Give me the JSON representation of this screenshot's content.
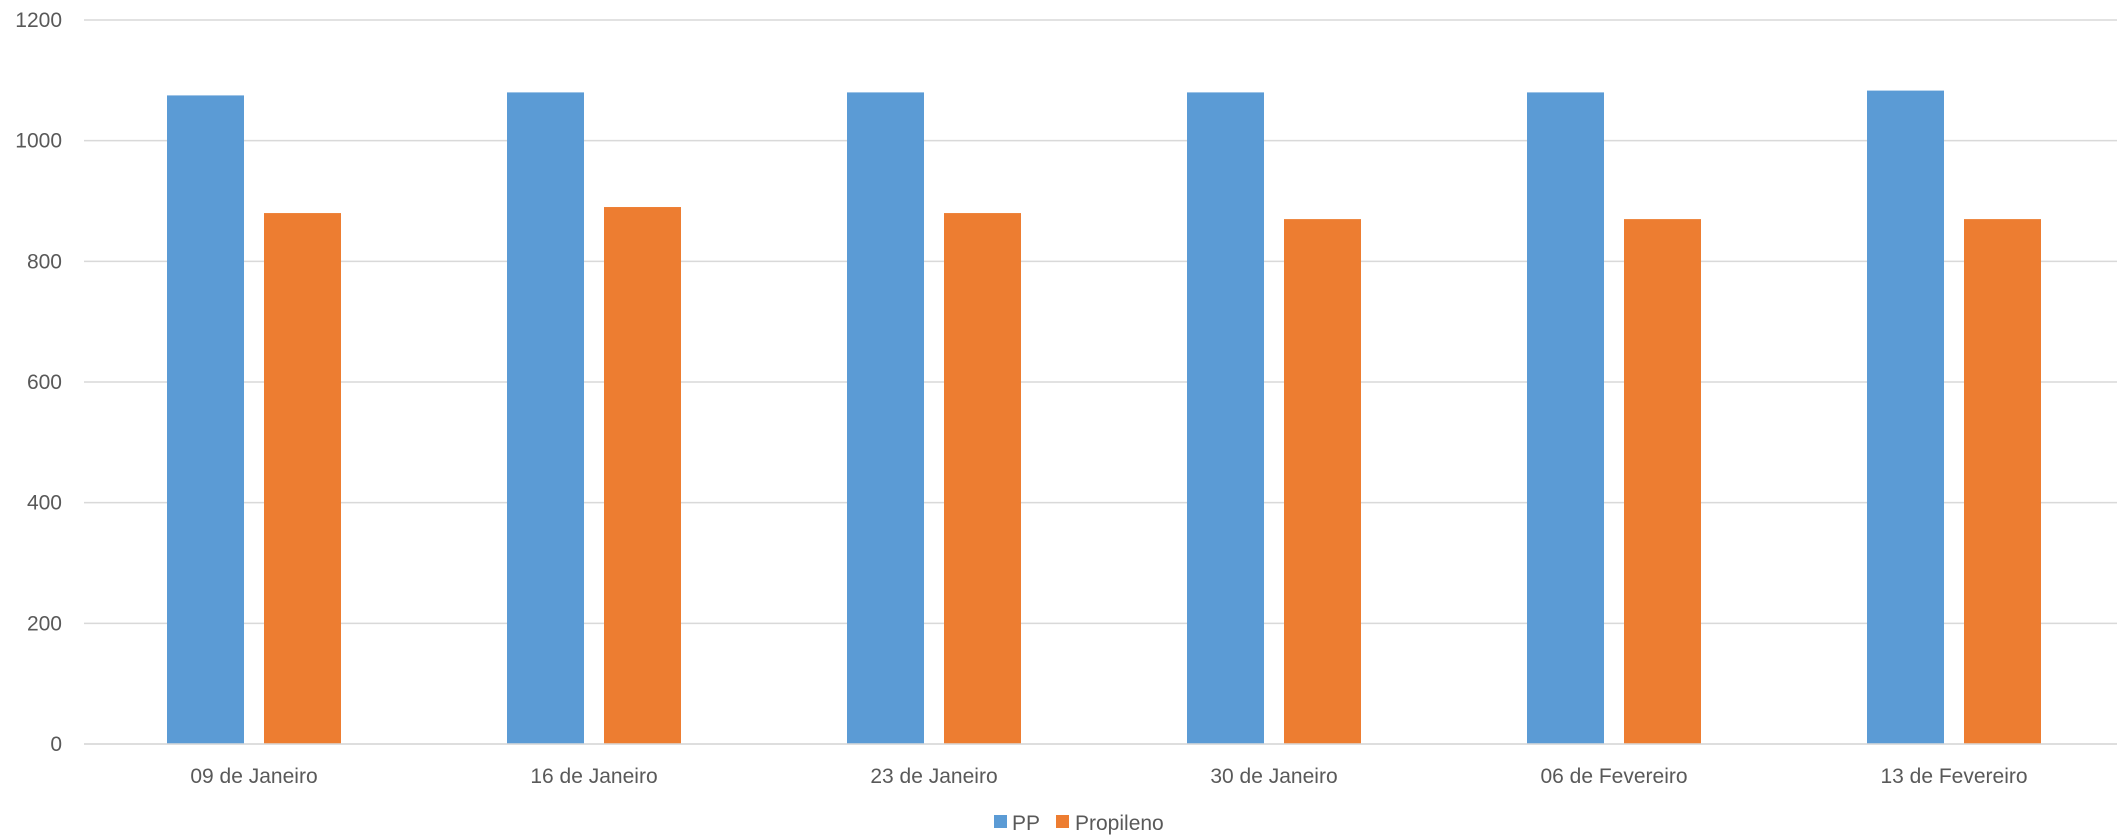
{
  "chart_data": {
    "type": "bar",
    "categories": [
      "09 de Janeiro",
      "16 de Janeiro",
      "23 de Janeiro",
      "30 de Janeiro",
      "06 de Fevereiro",
      "13 de Fevereiro"
    ],
    "series": [
      {
        "name": "PP",
        "values": [
          1075,
          1080,
          1080,
          1080,
          1080,
          1083
        ],
        "color": "#5B9BD5"
      },
      {
        "name": "Propileno",
        "values": [
          880,
          890,
          880,
          870,
          870,
          870
        ],
        "color": "#ED7D31"
      }
    ],
    "title": "",
    "xlabel": "",
    "ylabel": "",
    "ylim": [
      0,
      1200
    ],
    "yticks": [
      0,
      200,
      400,
      600,
      800,
      1000,
      1200
    ],
    "grid": true,
    "legend_position": "bottom",
    "gridline_color": "#D9D9D9",
    "text_color": "#595959"
  }
}
